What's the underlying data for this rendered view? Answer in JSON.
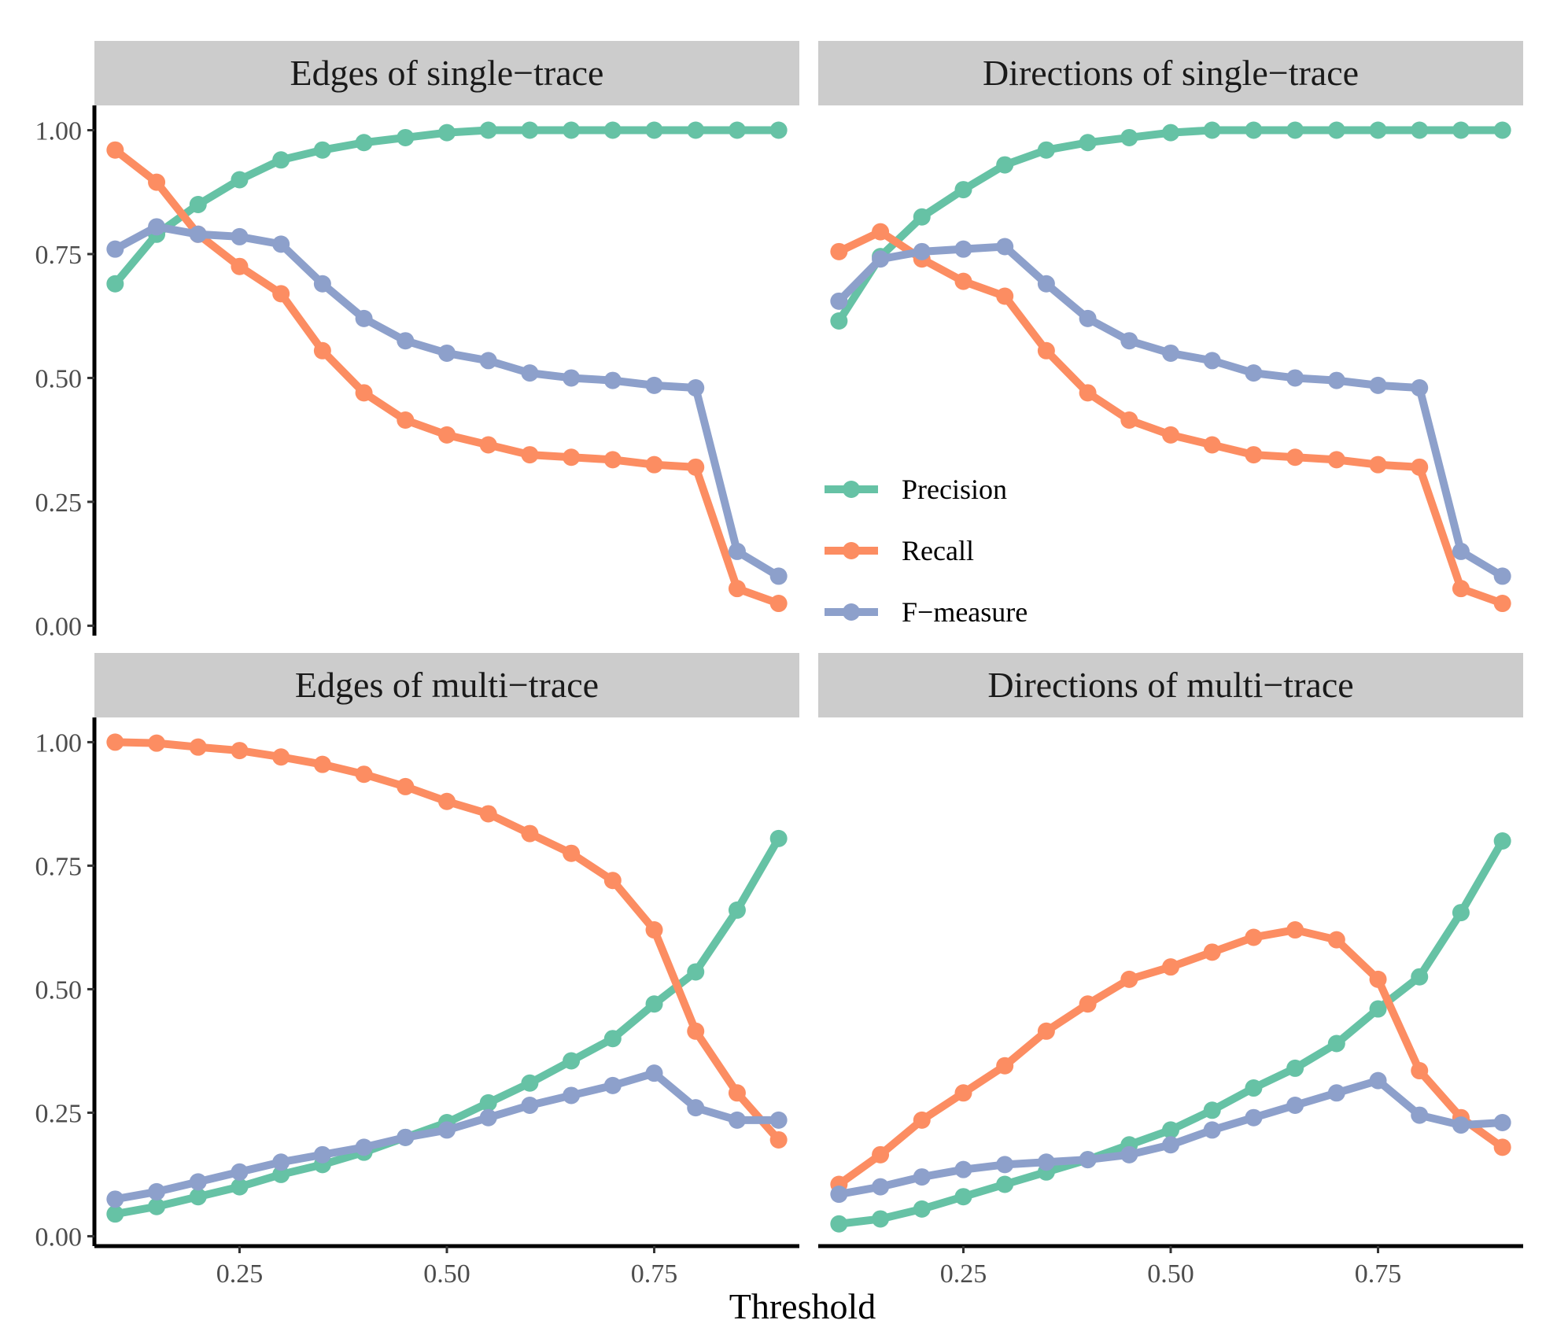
{
  "chart_data": {
    "type": "line",
    "xlabel": "Threshold",
    "ylabel": "",
    "x_ticks": [
      "0.25",
      "0.50",
      "0.75"
    ],
    "y_ticks": [
      "0.00",
      "0.25",
      "0.50",
      "0.75",
      "1.00"
    ],
    "xlim": [
      0.075,
      0.925
    ],
    "ylim": [
      -0.02,
      1.05
    ],
    "x": [
      0.1,
      0.15,
      0.2,
      0.25,
      0.3,
      0.35,
      0.4,
      0.45,
      0.5,
      0.55,
      0.6,
      0.65,
      0.7,
      0.75,
      0.8,
      0.85,
      0.9
    ],
    "legend": {
      "position": "right",
      "entries": [
        "Precision",
        "Recall",
        "F−measure"
      ]
    },
    "series_colors": {
      "Precision": "#66c2a5",
      "Recall": "#fc8d62",
      "F−measure": "#8da0cb"
    },
    "panels": [
      {
        "title": "Edges of single−trace",
        "series": [
          {
            "name": "Precision",
            "values": [
              0.69,
              0.79,
              0.85,
              0.9,
              0.94,
              0.96,
              0.975,
              0.985,
              0.995,
              1.0,
              1.0,
              1.0,
              1.0,
              1.0,
              1.0,
              1.0,
              1.0
            ]
          },
          {
            "name": "Recall",
            "values": [
              0.96,
              0.895,
              0.79,
              0.725,
              0.67,
              0.555,
              0.47,
              0.415,
              0.385,
              0.365,
              0.345,
              0.34,
              0.335,
              0.325,
              0.32,
              0.075,
              0.045
            ]
          },
          {
            "name": "F−measure",
            "values": [
              0.76,
              0.805,
              0.79,
              0.785,
              0.77,
              0.69,
              0.62,
              0.575,
              0.55,
              0.535,
              0.51,
              0.5,
              0.495,
              0.485,
              0.48,
              0.15,
              0.1
            ]
          }
        ]
      },
      {
        "title": "Directions of single−trace",
        "series": [
          {
            "name": "Precision",
            "values": [
              0.615,
              0.745,
              0.825,
              0.88,
              0.93,
              0.96,
              0.975,
              0.985,
              0.995,
              1.0,
              1.0,
              1.0,
              1.0,
              1.0,
              1.0,
              1.0,
              1.0
            ]
          },
          {
            "name": "Recall",
            "values": [
              0.755,
              0.795,
              0.74,
              0.695,
              0.665,
              0.555,
              0.47,
              0.415,
              0.385,
              0.365,
              0.345,
              0.34,
              0.335,
              0.325,
              0.32,
              0.075,
              0.045
            ]
          },
          {
            "name": "F−measure",
            "values": [
              0.655,
              0.74,
              0.755,
              0.76,
              0.765,
              0.69,
              0.62,
              0.575,
              0.55,
              0.535,
              0.51,
              0.5,
              0.495,
              0.485,
              0.48,
              0.15,
              0.1
            ]
          }
        ]
      },
      {
        "title": "Edges of multi−trace",
        "series": [
          {
            "name": "Precision",
            "values": [
              0.045,
              0.06,
              0.08,
              0.1,
              0.125,
              0.145,
              0.17,
              0.2,
              0.23,
              0.27,
              0.31,
              0.355,
              0.4,
              0.47,
              0.535,
              0.66,
              0.805
            ]
          },
          {
            "name": "Recall",
            "values": [
              1.0,
              0.998,
              0.99,
              0.983,
              0.97,
              0.955,
              0.935,
              0.91,
              0.88,
              0.855,
              0.815,
              0.775,
              0.72,
              0.62,
              0.415,
              0.29,
              0.195
            ]
          },
          {
            "name": "F−measure",
            "values": [
              0.075,
              0.09,
              0.11,
              0.13,
              0.15,
              0.165,
              0.18,
              0.2,
              0.215,
              0.24,
              0.265,
              0.285,
              0.305,
              0.33,
              0.26,
              0.235,
              0.235
            ]
          }
        ]
      },
      {
        "title": "Directions of multi−trace",
        "series": [
          {
            "name": "Precision",
            "values": [
              0.025,
              0.035,
              0.055,
              0.08,
              0.105,
              0.13,
              0.155,
              0.185,
              0.215,
              0.255,
              0.3,
              0.34,
              0.39,
              0.46,
              0.525,
              0.655,
              0.8
            ]
          },
          {
            "name": "Recall",
            "values": [
              0.105,
              0.165,
              0.235,
              0.29,
              0.345,
              0.415,
              0.47,
              0.52,
              0.545,
              0.575,
              0.605,
              0.62,
              0.6,
              0.52,
              0.335,
              0.24,
              0.18
            ]
          },
          {
            "name": "F−measure",
            "values": [
              0.085,
              0.1,
              0.12,
              0.135,
              0.145,
              0.15,
              0.155,
              0.165,
              0.185,
              0.215,
              0.24,
              0.265,
              0.29,
              0.315,
              0.245,
              0.225,
              0.23
            ]
          }
        ]
      }
    ]
  }
}
